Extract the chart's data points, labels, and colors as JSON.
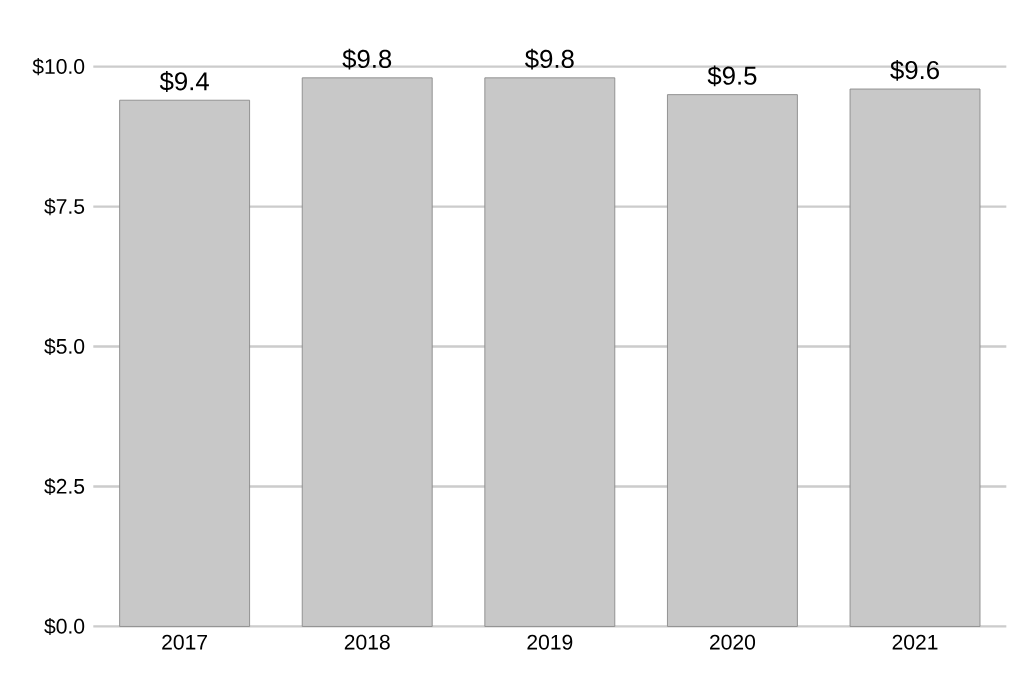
{
  "chart_data": {
    "type": "bar",
    "categories": [
      "2017",
      "2018",
      "2019",
      "2020",
      "2021"
    ],
    "values": [
      9.4,
      9.8,
      9.8,
      9.5,
      9.6
    ],
    "value_labels": [
      "$9.4",
      "$9.8",
      "$9.8",
      "$9.5",
      "$9.6"
    ],
    "color": "#c8c8c8",
    "ylim": [
      0,
      10
    ],
    "yticks": [
      {
        "value": 0,
        "label": "$0.0"
      },
      {
        "value": 2.5,
        "label": "$2.5"
      },
      {
        "value": 5,
        "label": "$5.0"
      },
      {
        "value": 7.5,
        "label": "$7.5"
      },
      {
        "value": 10,
        "label": "$10.0"
      }
    ],
    "grid": "y"
  }
}
